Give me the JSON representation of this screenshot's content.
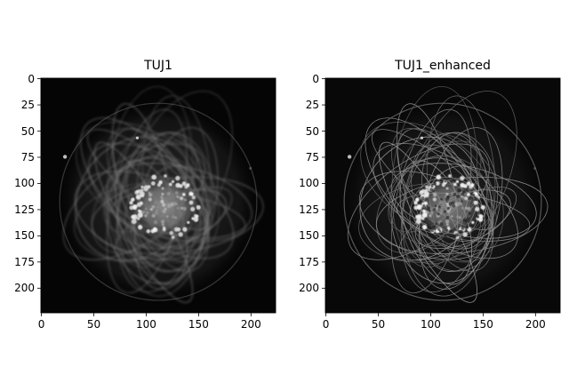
{
  "figure": {
    "panels": [
      {
        "title": "TUJ1",
        "xticks": [
          "0",
          "50",
          "100",
          "150",
          "200"
        ],
        "yticks": [
          "0",
          "25",
          "50",
          "75",
          "100",
          "125",
          "150",
          "175",
          "200"
        ],
        "enhanced": false
      },
      {
        "title": "TUJ1_enhanced",
        "xticks": [
          "0",
          "50",
          "100",
          "150",
          "200"
        ],
        "yticks": [
          "0",
          "25",
          "50",
          "75",
          "100",
          "125",
          "150",
          "175",
          "200"
        ],
        "enhanced": true
      }
    ],
    "image_size": [
      224,
      224
    ],
    "colormap": "gray"
  }
}
